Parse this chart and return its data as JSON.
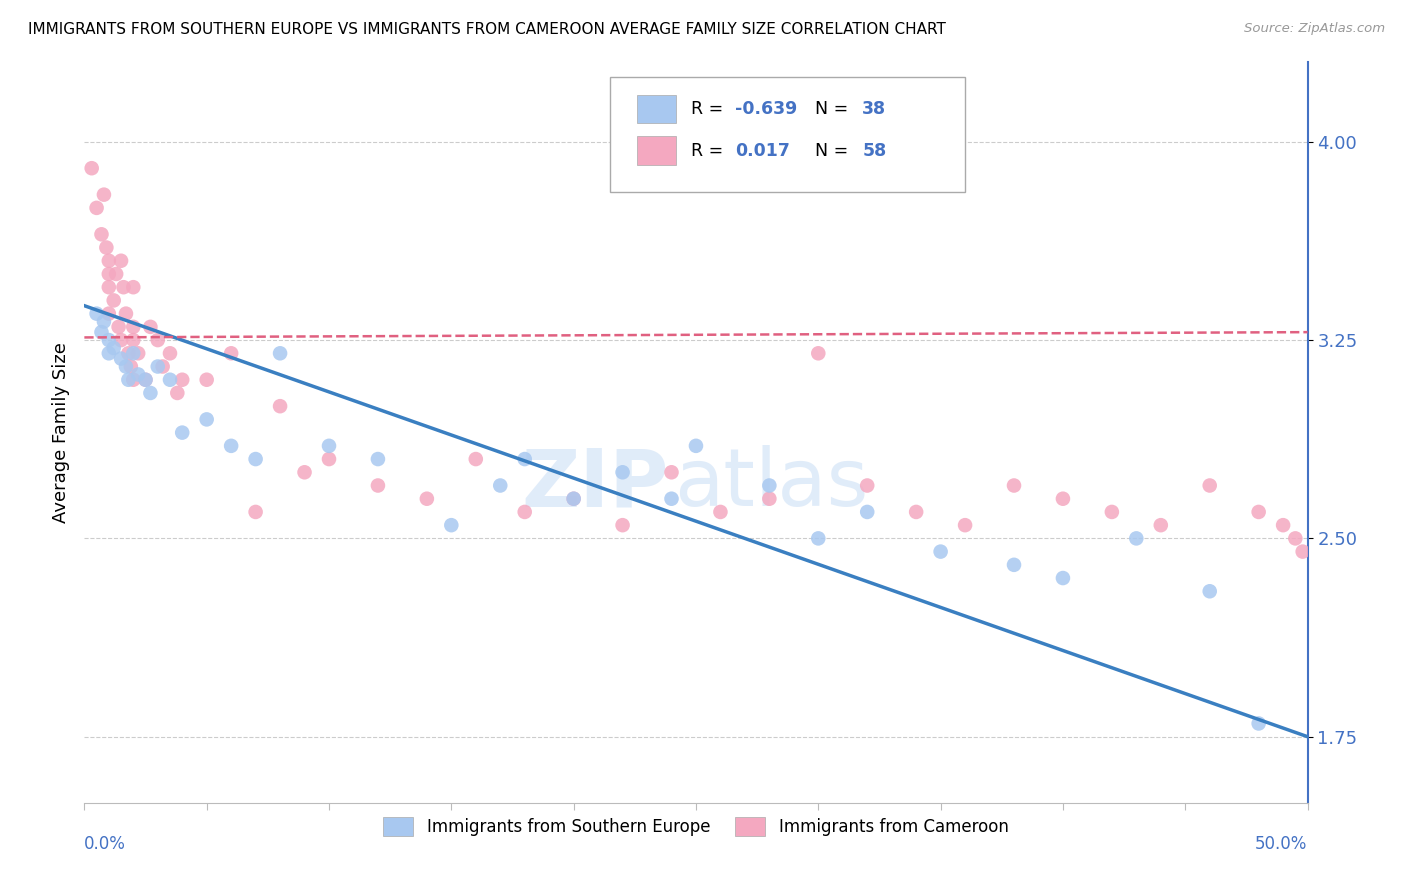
{
  "title": "IMMIGRANTS FROM SOUTHERN EUROPE VS IMMIGRANTS FROM CAMEROON AVERAGE FAMILY SIZE CORRELATION CHART",
  "source": "Source: ZipAtlas.com",
  "ylabel": "Average Family Size",
  "legend_label_blue": "Immigrants from Southern Europe",
  "legend_label_pink": "Immigrants from Cameroon",
  "R_blue": -0.639,
  "N_blue": 38,
  "R_pink": 0.017,
  "N_pink": 58,
  "color_blue": "#a8c8f0",
  "color_pink": "#f4a8c0",
  "line_color_blue": "#3a7fc1",
  "line_color_pink": "#e06080",
  "axis_color": "#4472c4",
  "xlim": [
    0.0,
    0.5
  ],
  "ylim": [
    1.5,
    4.3
  ],
  "yticks": [
    1.75,
    2.5,
    3.25,
    4.0
  ],
  "blue_trend_y0": 3.38,
  "blue_trend_y1": 1.75,
  "pink_trend_y0": 3.26,
  "pink_trend_y1": 3.28,
  "blue_scatter_x": [
    0.005,
    0.007,
    0.008,
    0.01,
    0.01,
    0.012,
    0.015,
    0.017,
    0.018,
    0.02,
    0.022,
    0.025,
    0.027,
    0.03,
    0.035,
    0.04,
    0.05,
    0.06,
    0.07,
    0.08,
    0.1,
    0.12,
    0.15,
    0.17,
    0.18,
    0.2,
    0.22,
    0.24,
    0.25,
    0.28,
    0.3,
    0.32,
    0.35,
    0.38,
    0.4,
    0.43,
    0.46,
    0.48
  ],
  "blue_scatter_y": [
    3.35,
    3.28,
    3.32,
    3.25,
    3.2,
    3.22,
    3.18,
    3.15,
    3.1,
    3.2,
    3.12,
    3.1,
    3.05,
    3.15,
    3.1,
    2.9,
    2.95,
    2.85,
    2.8,
    3.2,
    2.85,
    2.8,
    2.55,
    2.7,
    2.8,
    2.65,
    2.75,
    2.65,
    2.85,
    2.7,
    2.5,
    2.6,
    2.45,
    2.4,
    2.35,
    2.5,
    2.3,
    1.8
  ],
  "pink_scatter_x": [
    0.003,
    0.005,
    0.007,
    0.008,
    0.009,
    0.01,
    0.01,
    0.01,
    0.01,
    0.012,
    0.013,
    0.014,
    0.015,
    0.015,
    0.016,
    0.017,
    0.018,
    0.019,
    0.02,
    0.02,
    0.02,
    0.02,
    0.022,
    0.025,
    0.027,
    0.03,
    0.032,
    0.035,
    0.038,
    0.04,
    0.05,
    0.06,
    0.07,
    0.08,
    0.09,
    0.1,
    0.12,
    0.14,
    0.16,
    0.18,
    0.2,
    0.22,
    0.24,
    0.26,
    0.28,
    0.3,
    0.32,
    0.34,
    0.36,
    0.38,
    0.4,
    0.42,
    0.44,
    0.46,
    0.48,
    0.49,
    0.495,
    0.498
  ],
  "pink_scatter_y": [
    3.9,
    3.75,
    3.65,
    3.8,
    3.6,
    3.55,
    3.5,
    3.45,
    3.35,
    3.4,
    3.5,
    3.3,
    3.25,
    3.55,
    3.45,
    3.35,
    3.2,
    3.15,
    3.3,
    3.45,
    3.25,
    3.1,
    3.2,
    3.1,
    3.3,
    3.25,
    3.15,
    3.2,
    3.05,
    3.1,
    3.1,
    3.2,
    2.6,
    3.0,
    2.75,
    2.8,
    2.7,
    2.65,
    2.8,
    2.6,
    2.65,
    2.55,
    2.75,
    2.6,
    2.65,
    3.2,
    2.7,
    2.6,
    2.55,
    2.7,
    2.65,
    2.6,
    2.55,
    2.7,
    2.6,
    2.55,
    2.5,
    2.45
  ]
}
